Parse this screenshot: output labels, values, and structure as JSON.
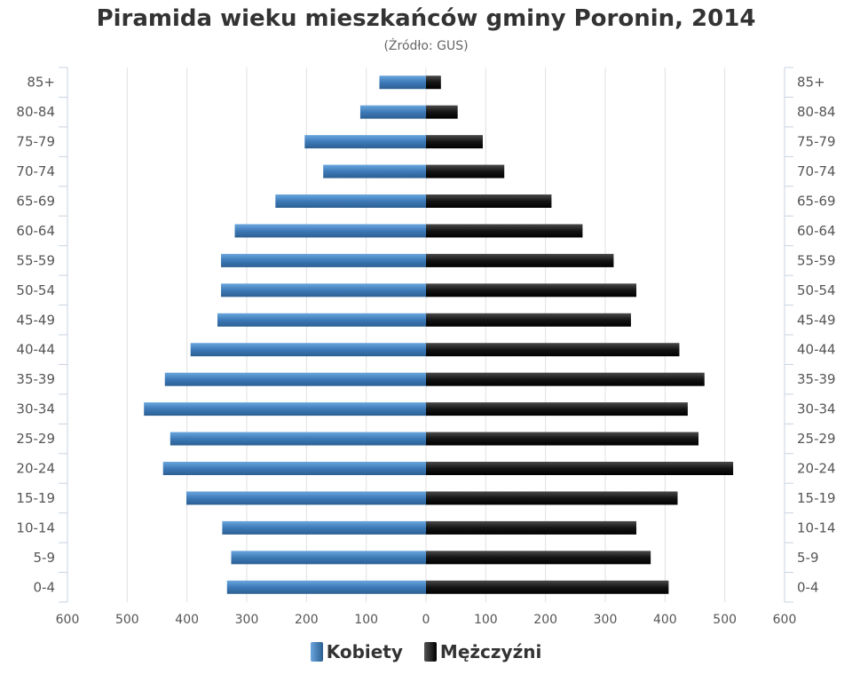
{
  "chart_data": {
    "type": "bar",
    "orientation": "horizontal",
    "title": "Piramida wieku mieszkańców gminy Poronin, 2014",
    "subtitle": "(Źródło: GUS)",
    "categories": [
      "85+",
      "80-84",
      "75-79",
      "70-74",
      "65-69",
      "60-64",
      "55-59",
      "50-54",
      "45-49",
      "40-44",
      "35-39",
      "30-34",
      "25-29",
      "20-24",
      "15-19",
      "10-14",
      "5-9",
      "0-4"
    ],
    "series": [
      {
        "name": "Kobiety",
        "color": "#3d7ab8",
        "side": "left",
        "values": [
          78,
          110,
          203,
          172,
          252,
          320,
          343,
          343,
          349,
          394,
          437,
          472,
          428,
          440,
          401,
          341,
          326,
          333
        ]
      },
      {
        "name": "Mężczyźni",
        "color": "#141414",
        "side": "right",
        "values": [
          25,
          53,
          95,
          131,
          210,
          262,
          314,
          352,
          343,
          424,
          466,
          438,
          456,
          514,
          421,
          352,
          376,
          406
        ]
      }
    ],
    "xlim": [
      -600,
      600
    ],
    "x_ticks": [
      "600",
      "500",
      "400",
      "300",
      "200",
      "100",
      "0",
      "100",
      "200",
      "300",
      "400",
      "500",
      "600"
    ],
    "grid": true,
    "legend_position": "bottom-center"
  },
  "legend": {
    "items": [
      {
        "label": "Kobiety",
        "color": "#3d7ab8"
      },
      {
        "label": "Mężczyźni",
        "color": "#141414"
      }
    ]
  }
}
